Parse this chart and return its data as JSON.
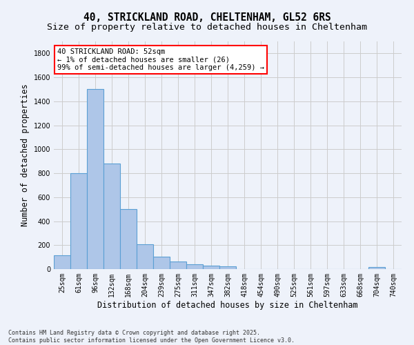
{
  "title_line1": "40, STRICKLAND ROAD, CHELTENHAM, GL52 6RS",
  "title_line2": "Size of property relative to detached houses in Cheltenham",
  "xlabel": "Distribution of detached houses by size in Cheltenham",
  "ylabel": "Number of detached properties",
  "categories": [
    "25sqm",
    "61sqm",
    "96sqm",
    "132sqm",
    "168sqm",
    "204sqm",
    "239sqm",
    "275sqm",
    "311sqm",
    "347sqm",
    "382sqm",
    "418sqm",
    "454sqm",
    "490sqm",
    "525sqm",
    "561sqm",
    "597sqm",
    "633sqm",
    "668sqm",
    "704sqm",
    "740sqm"
  ],
  "values": [
    115,
    800,
    1500,
    880,
    500,
    210,
    105,
    65,
    40,
    30,
    25,
    0,
    0,
    0,
    0,
    0,
    0,
    0,
    0,
    15,
    0
  ],
  "bar_color": "#aec6e8",
  "bar_edge_color": "#5a9fd4",
  "background_color": "#eef2fa",
  "grid_color": "#cccccc",
  "annotation_text": "40 STRICKLAND ROAD: 52sqm\n← 1% of detached houses are smaller (26)\n99% of semi-detached houses are larger (4,259) →",
  "annotation_box_color": "white",
  "annotation_box_edge": "red",
  "ylim": [
    0,
    1900
  ],
  "yticks": [
    0,
    200,
    400,
    600,
    800,
    1000,
    1200,
    1400,
    1600,
    1800
  ],
  "footer_line1": "Contains HM Land Registry data © Crown copyright and database right 2025.",
  "footer_line2": "Contains public sector information licensed under the Open Government Licence v3.0.",
  "title_fontsize": 10.5,
  "subtitle_fontsize": 9.5,
  "axis_label_fontsize": 8.5,
  "tick_fontsize": 7,
  "footer_fontsize": 6,
  "annotation_fontsize": 7.5
}
